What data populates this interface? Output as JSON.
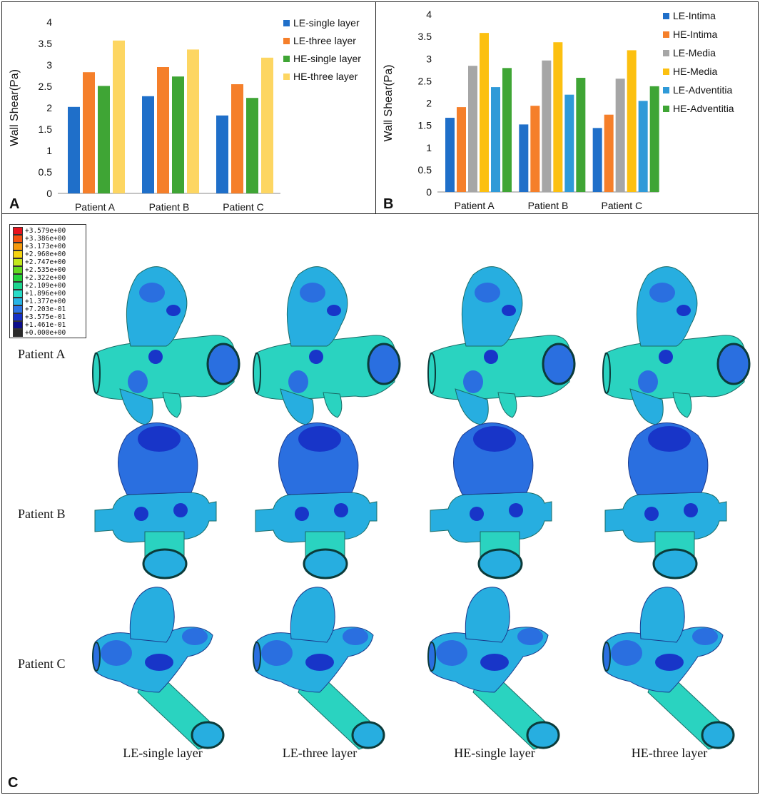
{
  "chart_data": [
    {
      "type": "bar",
      "panel": "A",
      "ylabel": "Wall Shear(Pa)",
      "ylim": [
        0,
        4
      ],
      "yticks": [
        "0",
        "0.5",
        "1",
        "1.5",
        "2",
        "2.5",
        "3",
        "3.5",
        "4"
      ],
      "categories": [
        "Patient A",
        "Patient B",
        "Patient C"
      ],
      "legend_position": "top-right",
      "series": [
        {
          "name": "LE-single layer",
          "color": "#1f6fc9",
          "values": [
            2.02,
            2.27,
            1.82
          ]
        },
        {
          "name": "LE-three layer",
          "color": "#f57f2a",
          "values": [
            2.83,
            2.95,
            2.55
          ]
        },
        {
          "name": "HE-single layer",
          "color": "#3fa535",
          "values": [
            2.51,
            2.73,
            2.23
          ]
        },
        {
          "name": "HE-three layer",
          "color": "#fdd662",
          "values": [
            3.57,
            3.36,
            3.17
          ]
        }
      ]
    },
    {
      "type": "bar",
      "panel": "B",
      "ylabel": "Wall Shear(Pa)",
      "ylim": [
        0,
        4
      ],
      "yticks": [
        "0",
        "0.5",
        "1",
        "1.5",
        "2",
        "2.5",
        "3",
        "3.5",
        "4"
      ],
      "categories": [
        "Patient A",
        "Patient B",
        "Patient C"
      ],
      "legend_position": "top-right",
      "series": [
        {
          "name": "LE-Intima",
          "color": "#1f6fc9",
          "values": [
            1.67,
            1.52,
            1.44
          ]
        },
        {
          "name": "HE-Intima",
          "color": "#f57f2a",
          "values": [
            1.91,
            1.94,
            1.74
          ]
        },
        {
          "name": "LE-Media",
          "color": "#a6a6a6",
          "values": [
            2.84,
            2.96,
            2.55
          ]
        },
        {
          "name": "HE-Media",
          "color": "#fcc010",
          "values": [
            3.58,
            3.37,
            3.19
          ]
        },
        {
          "name": "LE-Adventitia",
          "color": "#2f9ad8",
          "values": [
            2.36,
            2.19,
            2.05
          ]
        },
        {
          "name": "HE-Adventitia",
          "color": "#3fa535",
          "values": [
            2.79,
            2.57,
            2.38
          ]
        }
      ]
    }
  ],
  "panels": {
    "a_letter": "A",
    "b_letter": "B",
    "c_letter": "C"
  },
  "contour": {
    "row_labels": [
      "Patient A",
      "Patient B",
      "Patient C"
    ],
    "column_labels": [
      "LE-single layer",
      "LE-three layer",
      "HE-single layer",
      "HE-three layer"
    ],
    "legend_entries": [
      {
        "label": "+3.579e+00",
        "color": "#e8121c"
      },
      {
        "label": "+3.386e+00",
        "color": "#f5520f"
      },
      {
        "label": "+3.173e+00",
        "color": "#f59a0c"
      },
      {
        "label": "+2.960e+00",
        "color": "#f6d410"
      },
      {
        "label": "+2.747e+00",
        "color": "#c3e81a"
      },
      {
        "label": "+2.535e+00",
        "color": "#62d91d"
      },
      {
        "label": "+2.322e+00",
        "color": "#24d33a"
      },
      {
        "label": "+2.109e+00",
        "color": "#1cd58f"
      },
      {
        "label": "+1.896e+00",
        "color": "#27dcc7"
      },
      {
        "label": "+1.377e+00",
        "color": "#26b5e6"
      },
      {
        "label": "+7.203e-01",
        "color": "#2b73e6"
      },
      {
        "label": "+3.575e-01",
        "color": "#1530c8"
      },
      {
        "label": "+1.461e-01",
        "color": "#0c0d8c"
      },
      {
        "label": "+0.000e+00",
        "color": "#2b2b2b"
      }
    ]
  }
}
